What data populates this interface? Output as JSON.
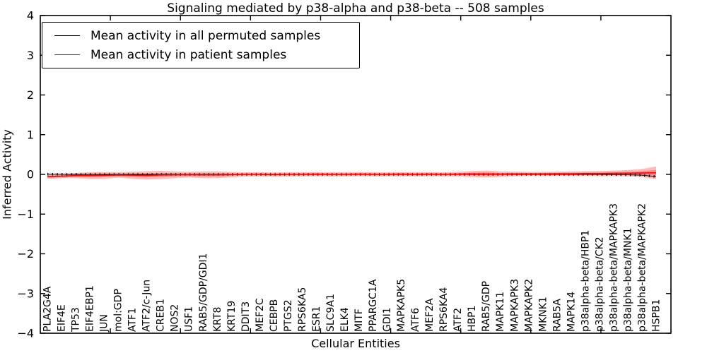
{
  "figure": {
    "background": "#ffffff"
  },
  "chart_data": {
    "type": "line",
    "title": "Signaling mediated by p38-alpha and p38-beta -- 508 samples",
    "xlabel": "Cellular Entities",
    "ylabel": "Inferred Activity",
    "ylim": [
      -4,
      4
    ],
    "y_ticks": [
      4,
      3,
      2,
      1,
      0,
      -1,
      -2,
      -3,
      -4
    ],
    "x_axis_units": 45,
    "x_major_tick_step": 5,
    "grid": false,
    "legend": {
      "position": "upper left",
      "items": [
        {
          "label": "Mean activity in all permuted samples",
          "color": "#000000",
          "style": "solid"
        },
        {
          "label": "Mean activity in patient samples",
          "color": "#ff0000",
          "style": "solid"
        }
      ]
    },
    "categories": [
      "PLA2G4A",
      "EIF4E",
      "TP53",
      "EIF4EBP1",
      "JUN",
      "mol:GDP",
      "ATF1",
      "ATF2/c-Jun",
      "CREB1",
      "NOS2",
      "USF1",
      "RAB5/GDP/GDI1",
      "KRT8",
      "KRT19",
      "DDIT3",
      "MEF2C",
      "CEBPB",
      "PTGS2",
      "RPS6KA5",
      "ESR1",
      "SLC9A1",
      "ELK4",
      "MITF",
      "PPARGC1A",
      "GDI1",
      "MAPKAPK5",
      "ATF6",
      "MEF2A",
      "RPS6KA4",
      "ATF2",
      "HBP1",
      "RAB5/GDP",
      "MAPK11",
      "MAPKAPK3",
      "MAPKAPK2",
      "MKNK1",
      "RAB5A",
      "MAPK14",
      "p38alpha-beta/HBP1",
      "p38alpha-beta/CK2",
      "p38alpha-beta/MAPKAPK3",
      "p38alpha-beta/MNK1",
      "p38alpha-beta/MAPKAPK2",
      "HSPB1"
    ],
    "series": [
      {
        "name": "Mean activity in all permuted samples",
        "color": "#000000",
        "line_style": "dashed-ticked",
        "values": [
          0.005,
          0.003,
          0,
          0,
          0,
          0,
          0,
          0,
          0,
          0,
          0,
          0,
          0,
          0,
          0,
          0,
          0,
          0,
          0,
          0,
          0,
          0,
          0,
          0,
          0,
          0,
          0,
          0,
          0,
          0,
          0,
          0,
          0,
          0,
          0,
          0,
          0,
          0,
          0,
          0,
          -0.005,
          -0.01,
          -0.02,
          -0.055
        ]
      },
      {
        "name": "Mean activity in patient samples",
        "color": "#ff0000",
        "line_style": "solid",
        "values": [
          -0.055,
          -0.045,
          -0.03,
          -0.03,
          -0.025,
          -0.015,
          -0.02,
          -0.025,
          -0.015,
          -0.01,
          -0.005,
          -0.01,
          -0.01,
          -0.005,
          0,
          0,
          -0.005,
          0,
          0,
          0.005,
          0,
          0,
          0.005,
          0,
          0,
          0.005,
          0,
          0.005,
          0,
          0.005,
          0.01,
          0.01,
          0.005,
          0.01,
          0.01,
          0.01,
          0.015,
          0.015,
          0.02,
          0.02,
          0.025,
          0.03,
          0.035,
          0.04
        ],
        "band_halfwidth": [
          0.055,
          0.05,
          0.065,
          0.085,
          0.085,
          0.07,
          0.09,
          0.105,
          0.105,
          0.085,
          0.07,
          0.085,
          0.085,
          0.065,
          0.055,
          0.055,
          0.055,
          0.055,
          0.055,
          0.055,
          0.055,
          0.055,
          0.055,
          0.055,
          0.055,
          0.055,
          0.055,
          0.055,
          0.055,
          0.06,
          0.075,
          0.085,
          0.07,
          0.06,
          0.055,
          0.055,
          0.055,
          0.06,
          0.06,
          0.065,
          0.07,
          0.08,
          0.1,
          0.16
        ],
        "band_color": "#ff0000",
        "band_opacity": 0.27
      }
    ]
  }
}
